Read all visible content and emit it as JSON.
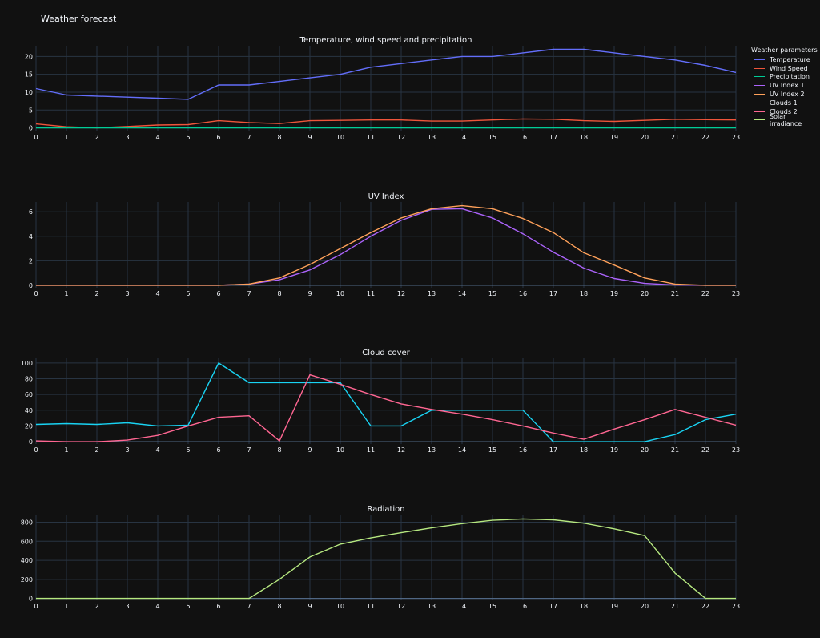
{
  "title": "Weather forecast",
  "legend": {
    "title": "Weather parameters",
    "items": [
      {
        "name": "Temperature",
        "color": "#636efa"
      },
      {
        "name": "Wind Speed",
        "color": "#ef553b"
      },
      {
        "name": "Precipitation",
        "color": "#00cc96"
      },
      {
        "name": "UV Index 1",
        "color": "#ab63fa"
      },
      {
        "name": "UV Index 2",
        "color": "#ffa15a"
      },
      {
        "name": "Clouds 1",
        "color": "#19d3f3"
      },
      {
        "name": "Clouds 2",
        "color": "#ff6692"
      },
      {
        "name": "Solar irradiance",
        "color": "#b6e880"
      }
    ]
  },
  "chart_data": [
    {
      "type": "line",
      "title": "Temperature, wind speed and precipitation",
      "x": [
        0,
        1,
        2,
        3,
        4,
        5,
        6,
        7,
        8,
        9,
        10,
        11,
        12,
        13,
        14,
        15,
        16,
        17,
        18,
        19,
        20,
        21,
        22,
        23
      ],
      "ylim": [
        -1,
        23
      ],
      "yticks": [
        0,
        5,
        10,
        15,
        20
      ],
      "series": [
        {
          "name": "Temperature",
          "color": "#636efa",
          "values": [
            11,
            9.2,
            8.9,
            8.6,
            8.3,
            8,
            12,
            12,
            13,
            14,
            15,
            17,
            18,
            19,
            20,
            20,
            21,
            22,
            22,
            21,
            20,
            19,
            17.5,
            15.5
          ]
        },
        {
          "name": "Wind Speed",
          "color": "#ef553b",
          "values": [
            1.1,
            0.3,
            0,
            0.4,
            0.8,
            0.9,
            2,
            1.5,
            1.2,
            2,
            2.1,
            2.2,
            2.2,
            1.9,
            1.9,
            2.2,
            2.5,
            2.4,
            2,
            1.8,
            2.1,
            2.4,
            2.3,
            2.2
          ]
        },
        {
          "name": "Precipitation",
          "color": "#00cc96",
          "values": [
            0,
            0,
            0,
            0,
            0,
            0,
            0,
            0,
            0,
            0,
            0,
            0,
            0,
            0,
            0,
            0,
            0,
            0,
            0,
            0,
            0,
            0,
            0,
            0
          ]
        }
      ]
    },
    {
      "type": "line",
      "title": "UV Index",
      "x": [
        0,
        1,
        2,
        3,
        4,
        5,
        6,
        7,
        8,
        9,
        10,
        11,
        12,
        13,
        14,
        15,
        16,
        17,
        18,
        19,
        20,
        21,
        22,
        23
      ],
      "ylim": [
        -0.2,
        6.8
      ],
      "yticks": [
        0,
        2,
        4,
        6
      ],
      "series": [
        {
          "name": "UV Index 1",
          "color": "#ab63fa",
          "values": [
            0,
            0,
            0,
            0,
            0,
            0,
            0,
            0.1,
            0.45,
            1.25,
            2.5,
            4,
            5.3,
            6.2,
            6.25,
            5.5,
            4.2,
            2.7,
            1.4,
            0.55,
            0.15,
            0.02,
            0,
            0
          ]
        },
        {
          "name": "UV Index 2",
          "color": "#ffa15a",
          "values": [
            0,
            0,
            0,
            0,
            0,
            0,
            0,
            0.1,
            0.6,
            1.7,
            3,
            4.3,
            5.5,
            6.25,
            6.5,
            6.25,
            5.45,
            4.3,
            2.65,
            1.65,
            0.6,
            0.1,
            0,
            0
          ]
        }
      ]
    },
    {
      "type": "line",
      "title": "Cloud cover",
      "x": [
        0,
        1,
        2,
        3,
        4,
        5,
        6,
        7,
        8,
        9,
        10,
        11,
        12,
        13,
        14,
        15,
        16,
        17,
        18,
        19,
        20,
        21,
        22,
        23
      ],
      "ylim": [
        -3,
        106
      ],
      "yticks": [
        0,
        20,
        40,
        60,
        80,
        100
      ],
      "series": [
        {
          "name": "Clouds 1",
          "color": "#19d3f3",
          "values": [
            22,
            23,
            22,
            24,
            20,
            21,
            100,
            75,
            75,
            75,
            75,
            20,
            20,
            40,
            40,
            40,
            40,
            0,
            0,
            0,
            0,
            9,
            28,
            35
          ]
        },
        {
          "name": "Clouds 2",
          "color": "#ff6692",
          "values": [
            1,
            0,
            0,
            2,
            8,
            20,
            31,
            33,
            1,
            85,
            73,
            60,
            48,
            41,
            35,
            28,
            20,
            11,
            3,
            16,
            28,
            41,
            31,
            21
          ]
        }
      ]
    },
    {
      "type": "line",
      "title": "Radiation",
      "x": [
        0,
        1,
        2,
        3,
        4,
        5,
        6,
        7,
        8,
        9,
        10,
        11,
        12,
        13,
        14,
        15,
        16,
        17,
        18,
        19,
        20,
        21,
        22,
        23
      ],
      "ylim": [
        -20,
        880
      ],
      "yticks": [
        0,
        200,
        400,
        600,
        800
      ],
      "series": [
        {
          "name": "Solar irradiance",
          "color": "#b6e880",
          "values": [
            0,
            0,
            0,
            0,
            0,
            0,
            0,
            0,
            200,
            435,
            570,
            635,
            690,
            740,
            785,
            820,
            835,
            825,
            790,
            730,
            660,
            265,
            0,
            0
          ]
        }
      ]
    }
  ]
}
